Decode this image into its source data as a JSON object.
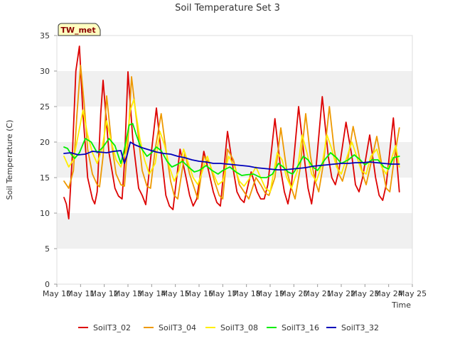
{
  "chart_data": {
    "type": "line",
    "title": "Soil Temperature Set 3",
    "xlabel": "Time",
    "ylabel": "Soil Temperature (C)",
    "badge": "TW_met",
    "ylim": [
      0,
      35
    ],
    "yticks": [
      "0",
      "5",
      "10",
      "15",
      "20",
      "25",
      "30",
      "35"
    ],
    "xlim": [
      10,
      25
    ],
    "xticks": [
      "May 10",
      "May 11",
      "May 12",
      "May 13",
      "May 14",
      "May 15",
      "May 16",
      "May 17",
      "May 18",
      "May 19",
      "May 20",
      "May 21",
      "May 22",
      "May 23",
      "May 24",
      "May 25"
    ],
    "grid": "alternating horizontal bands",
    "legend_position": "bottom",
    "series": [
      {
        "name": "SoilT3_02",
        "color": "#dd0000",
        "x": [
          10.3,
          10.4,
          10.5,
          10.65,
          10.8,
          10.95,
          11.1,
          11.3,
          11.5,
          11.6,
          11.7,
          11.85,
          11.95,
          12.2,
          12.45,
          12.6,
          12.75,
          12.85,
          13.0,
          13.2,
          13.45,
          13.6,
          13.75,
          13.9,
          14.2,
          14.45,
          14.6,
          14.75,
          14.9,
          15.2,
          15.45,
          15.6,
          15.75,
          15.9,
          16.2,
          16.4,
          16.6,
          16.75,
          16.9,
          17.2,
          17.45,
          17.6,
          17.75,
          17.9,
          18.2,
          18.45,
          18.6,
          18.75,
          18.9,
          19.2,
          19.45,
          19.6,
          19.75,
          19.9,
          20.2,
          20.45,
          20.6,
          20.75,
          20.9,
          21.2,
          21.45,
          21.6,
          21.75,
          21.9,
          22.2,
          22.45,
          22.6,
          22.75,
          22.9,
          23.2,
          23.45,
          23.6,
          23.75,
          23.9,
          24.2,
          24.45
        ],
        "y": [
          12.2,
          11.3,
          9.2,
          18.0,
          30.0,
          33.5,
          24.0,
          15.0,
          12.0,
          11.3,
          13.0,
          24.0,
          28.7,
          18.5,
          13.5,
          12.4,
          12.0,
          17.0,
          29.9,
          20.5,
          13.5,
          12.5,
          11.2,
          16.0,
          24.8,
          17.0,
          12.5,
          11.0,
          10.5,
          19.0,
          15.0,
          12.5,
          11.0,
          12.0,
          18.7,
          16.0,
          13.0,
          11.5,
          11.0,
          21.5,
          16.0,
          13.0,
          12.0,
          11.5,
          15.8,
          13.0,
          12.0,
          12.0,
          14.0,
          23.3,
          16.0,
          13.0,
          11.3,
          14.0,
          25.0,
          17.5,
          13.5,
          11.3,
          15.0,
          26.4,
          18.0,
          15.0,
          14.0,
          16.0,
          22.8,
          18.0,
          14.0,
          13.0,
          15.0,
          21.0,
          15.0,
          12.5,
          11.8,
          14.0,
          23.4,
          13.0
        ]
      },
      {
        "name": "SoilT3_04",
        "color": "#ee9900",
        "x": [
          10.3,
          10.5,
          10.7,
          10.85,
          11.0,
          11.15,
          11.3,
          11.5,
          11.7,
          11.8,
          11.95,
          12.1,
          12.3,
          12.5,
          12.7,
          12.85,
          13.0,
          13.15,
          13.4,
          13.6,
          13.8,
          13.95,
          14.15,
          14.4,
          14.6,
          14.8,
          14.95,
          15.1,
          15.4,
          15.6,
          15.8,
          15.95,
          16.2,
          16.45,
          16.65,
          16.85,
          17.0,
          17.2,
          17.45,
          17.7,
          17.9,
          18.1,
          18.4,
          18.6,
          18.8,
          18.95,
          19.2,
          19.45,
          19.7,
          19.9,
          20.05,
          20.25,
          20.5,
          20.7,
          20.9,
          21.05,
          21.25,
          21.5,
          21.7,
          21.9,
          22.05,
          22.25,
          22.5,
          22.7,
          22.9,
          23.05,
          23.25,
          23.5,
          23.7,
          23.9,
          24.05,
          24.25,
          24.45
        ],
        "y": [
          14.5,
          13.5,
          16.0,
          24.0,
          30.8,
          25.5,
          19.0,
          15.5,
          14.0,
          13.7,
          18.0,
          26.5,
          20.0,
          15.5,
          14.0,
          13.8,
          20.0,
          29.2,
          22.0,
          16.0,
          13.8,
          13.5,
          19.0,
          24.0,
          19.0,
          14.5,
          12.5,
          12.0,
          18.5,
          15.5,
          13.5,
          12.0,
          18.0,
          17.0,
          14.5,
          12.5,
          12.0,
          19.0,
          17.5,
          14.0,
          13.0,
          12.0,
          15.0,
          14.0,
          12.8,
          12.5,
          15.0,
          22.0,
          16.0,
          13.5,
          12.0,
          16.0,
          24.0,
          18.0,
          14.5,
          13.0,
          17.0,
          25.0,
          19.0,
          15.5,
          14.5,
          17.0,
          22.2,
          19.0,
          15.5,
          14.0,
          17.0,
          20.8,
          17.0,
          13.5,
          13.0,
          18.0,
          22.0
        ]
      },
      {
        "name": "SoilT3_08",
        "color": "#ffee00",
        "x": [
          10.3,
          10.5,
          10.7,
          10.9,
          11.1,
          11.3,
          11.5,
          11.7,
          11.9,
          12.1,
          12.3,
          12.5,
          12.7,
          12.9,
          13.1,
          13.25,
          13.5,
          13.7,
          13.9,
          14.15,
          14.35,
          14.55,
          14.75,
          14.95,
          15.15,
          15.35,
          15.55,
          15.75,
          15.95,
          16.15,
          16.35,
          16.55,
          16.8,
          17.0,
          17.25,
          17.5,
          17.7,
          17.9,
          18.15,
          18.4,
          18.6,
          18.8,
          19.0,
          19.3,
          19.5,
          19.7,
          19.9,
          20.15,
          20.35,
          20.55,
          20.75,
          20.95,
          21.2,
          21.4,
          21.6,
          21.8,
          22.0,
          22.2,
          22.45,
          22.65,
          22.85,
          23.05,
          23.25,
          23.5,
          23.7,
          23.9,
          24.1,
          24.3,
          24.45
        ],
        "y": [
          18.0,
          16.5,
          17.5,
          21.0,
          24.5,
          21.0,
          18.5,
          17.0,
          19.0,
          23.0,
          20.0,
          17.5,
          16.5,
          18.5,
          24.5,
          26.0,
          20.5,
          17.5,
          15.5,
          17.0,
          21.5,
          19.5,
          16.5,
          14.5,
          16.0,
          19.0,
          17.0,
          15.0,
          14.0,
          16.0,
          18.0,
          16.0,
          14.0,
          14.5,
          18.0,
          16.5,
          14.5,
          13.8,
          15.0,
          16.5,
          15.0,
          13.5,
          13.0,
          18.5,
          17.5,
          15.0,
          13.5,
          16.0,
          21.0,
          18.5,
          15.5,
          14.5,
          17.0,
          21.0,
          19.0,
          16.5,
          15.5,
          17.5,
          20.0,
          18.0,
          16.0,
          15.5,
          18.0,
          19.0,
          16.5,
          15.5,
          17.5,
          19.5,
          16.5
        ]
      },
      {
        "name": "SoilT3_16",
        "color": "#00ee00",
        "x": [
          10.3,
          10.45,
          10.6,
          10.75,
          10.95,
          11.2,
          11.45,
          11.7,
          11.95,
          12.2,
          12.45,
          12.7,
          12.85,
          13.05,
          13.2,
          13.35,
          13.55,
          13.8,
          14.0,
          14.2,
          14.4,
          14.65,
          14.85,
          15.05,
          15.3,
          15.55,
          15.8,
          16.0,
          16.3,
          16.55,
          16.8,
          17.0,
          17.3,
          17.55,
          17.8,
          18.0,
          18.3,
          18.6,
          18.85,
          19.1,
          19.35,
          19.55,
          19.75,
          19.95,
          20.15,
          20.4,
          20.6,
          20.8,
          21.0,
          21.3,
          21.55,
          21.8,
          22.0,
          22.3,
          22.55,
          22.8,
          23.0,
          23.3,
          23.55,
          23.8,
          24.0,
          24.2,
          24.45
        ],
        "y": [
          19.3,
          19.1,
          18.3,
          17.7,
          18.5,
          20.5,
          20.0,
          18.5,
          19.3,
          20.5,
          19.5,
          17.0,
          19.0,
          22.4,
          22.6,
          21.0,
          19.2,
          18.0,
          18.5,
          19.3,
          18.8,
          17.3,
          16.5,
          16.8,
          17.3,
          16.5,
          15.8,
          16.0,
          16.7,
          16.0,
          15.5,
          16.0,
          16.5,
          15.8,
          15.3,
          15.4,
          15.5,
          15.0,
          15.0,
          15.5,
          17.0,
          16.5,
          15.8,
          15.5,
          16.5,
          18.0,
          17.5,
          16.5,
          16.0,
          17.5,
          18.5,
          17.8,
          17.0,
          17.5,
          18.2,
          17.5,
          16.8,
          17.5,
          17.5,
          16.5,
          16.2,
          17.8,
          18.0
        ]
      },
      {
        "name": "SoilT3_32",
        "color": "#0000bb",
        "x": [
          10.3,
          10.6,
          10.9,
          11.2,
          11.5,
          11.8,
          12.1,
          12.4,
          12.7,
          12.85,
          12.95,
          13.1,
          13.3,
          13.6,
          13.9,
          14.2,
          14.5,
          14.8,
          15.1,
          15.4,
          15.7,
          16.0,
          16.3,
          16.6,
          16.9,
          17.2,
          17.5,
          17.8,
          18.1,
          18.4,
          18.7,
          19.0,
          19.3,
          19.6,
          19.9,
          20.2,
          20.5,
          20.8,
          21.1,
          21.4,
          21.7,
          22.0,
          22.3,
          22.6,
          22.9,
          23.2,
          23.5,
          23.8,
          24.1,
          24.45
        ],
        "y": [
          18.4,
          18.5,
          18.2,
          18.3,
          18.7,
          18.6,
          18.5,
          18.7,
          18.8,
          17.0,
          18.0,
          20.0,
          19.6,
          19.2,
          18.9,
          18.6,
          18.4,
          18.3,
          18.0,
          17.8,
          17.5,
          17.3,
          17.2,
          17.0,
          17.0,
          16.9,
          16.8,
          16.7,
          16.6,
          16.4,
          16.3,
          16.2,
          16.1,
          16.1,
          16.2,
          16.3,
          16.4,
          16.6,
          16.7,
          16.8,
          16.9,
          17.0,
          17.0,
          17.1,
          17.1,
          17.2,
          17.1,
          17.0,
          16.9,
          16.9
        ]
      }
    ]
  }
}
